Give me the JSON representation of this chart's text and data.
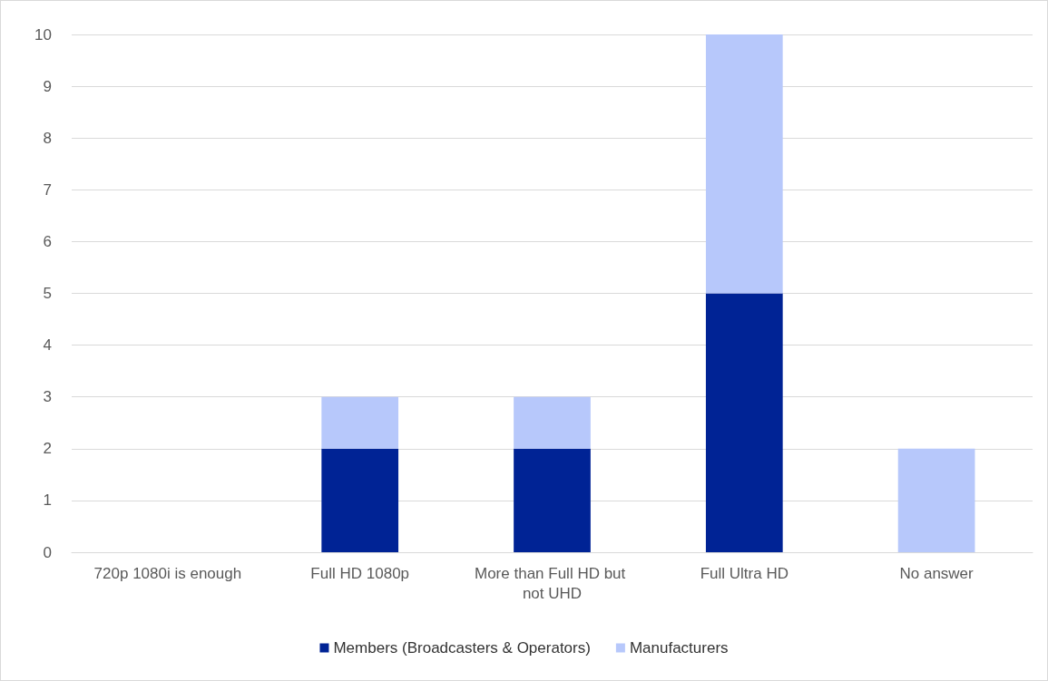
{
  "chart_data": {
    "type": "bar",
    "stacked": true,
    "categories": [
      "720p 1080i is enough",
      "Full HD 1080p",
      "More than Full HD but not UHD",
      "Full Ultra HD",
      "No answer"
    ],
    "series": [
      {
        "name": "Members (Broadcasters & Operators)",
        "color": "#002395",
        "values": [
          0,
          2,
          2,
          5,
          0
        ]
      },
      {
        "name": "Manufacturers",
        "color": "#b7c8fb",
        "values": [
          0,
          1,
          1,
          5,
          2
        ]
      }
    ],
    "ylim": [
      0,
      10
    ],
    "yticks": [
      0,
      1,
      2,
      3,
      4,
      5,
      6,
      7,
      8,
      9,
      10
    ],
    "grid": "y",
    "legend": "bottom"
  }
}
